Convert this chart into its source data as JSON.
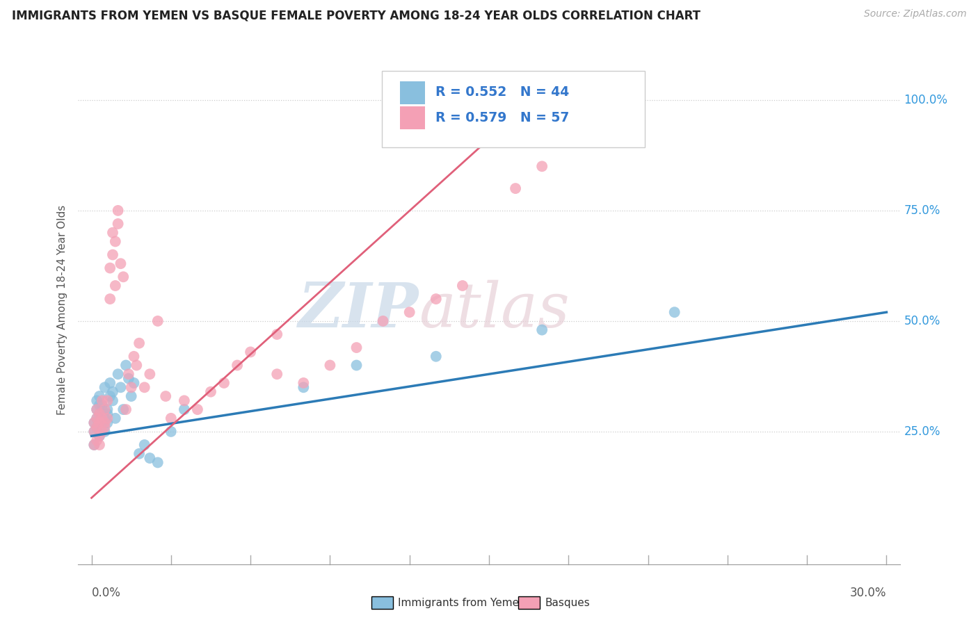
{
  "title": "IMMIGRANTS FROM YEMEN VS BASQUE FEMALE POVERTY AMONG 18-24 YEAR OLDS CORRELATION CHART",
  "source": "Source: ZipAtlas.com",
  "ylabel": "Female Poverty Among 18-24 Year Olds",
  "legend_blue_label": "Immigrants from Yemen",
  "legend_pink_label": "Basques",
  "R_blue": 0.552,
  "N_blue": 44,
  "R_pink": 0.579,
  "N_pink": 57,
  "blue_color": "#89bfde",
  "pink_color": "#f4a0b5",
  "blue_line_color": "#2c7bb6",
  "pink_line_color": "#e0607a",
  "watermark_zip": "ZIP",
  "watermark_atlas": "atlas",
  "xlim_min": 0.0,
  "xlim_max": 0.3,
  "ylim_min": 0.0,
  "ylim_max": 1.05,
  "ytick_vals": [
    0.25,
    0.5,
    0.75,
    1.0
  ],
  "ytick_labels": [
    "25.0%",
    "50.0%",
    "75.0%",
    "100.0%"
  ],
  "xtick_left_label": "0.0%",
  "xtick_right_label": "30.0%",
  "blue_scatter_x": [
    0.001,
    0.001,
    0.002,
    0.001,
    0.002,
    0.002,
    0.003,
    0.002,
    0.003,
    0.003,
    0.004,
    0.003,
    0.004,
    0.004,
    0.005,
    0.004,
    0.005,
    0.005,
    0.006,
    0.006,
    0.007,
    0.006,
    0.007,
    0.008,
    0.009,
    0.008,
    0.01,
    0.011,
    0.012,
    0.013,
    0.015,
    0.014,
    0.016,
    0.018,
    0.02,
    0.022,
    0.025,
    0.03,
    0.035,
    0.08,
    0.1,
    0.13,
    0.17,
    0.22
  ],
  "blue_scatter_y": [
    0.27,
    0.25,
    0.3,
    0.22,
    0.28,
    0.32,
    0.29,
    0.26,
    0.31,
    0.24,
    0.28,
    0.33,
    0.27,
    0.3,
    0.25,
    0.31,
    0.28,
    0.35,
    0.3,
    0.27,
    0.33,
    0.29,
    0.36,
    0.32,
    0.28,
    0.34,
    0.38,
    0.35,
    0.3,
    0.4,
    0.33,
    0.37,
    0.36,
    0.2,
    0.22,
    0.19,
    0.18,
    0.25,
    0.3,
    0.35,
    0.4,
    0.42,
    0.48,
    0.52
  ],
  "pink_scatter_x": [
    0.001,
    0.001,
    0.001,
    0.002,
    0.002,
    0.002,
    0.002,
    0.003,
    0.003,
    0.003,
    0.003,
    0.004,
    0.004,
    0.004,
    0.005,
    0.005,
    0.005,
    0.006,
    0.006,
    0.007,
    0.007,
    0.008,
    0.008,
    0.009,
    0.009,
    0.01,
    0.01,
    0.011,
    0.012,
    0.013,
    0.014,
    0.015,
    0.016,
    0.017,
    0.018,
    0.02,
    0.022,
    0.025,
    0.028,
    0.03,
    0.035,
    0.04,
    0.045,
    0.05,
    0.055,
    0.06,
    0.07,
    0.07,
    0.08,
    0.09,
    0.1,
    0.11,
    0.12,
    0.13,
    0.14,
    0.16,
    0.17
  ],
  "pink_scatter_y": [
    0.27,
    0.25,
    0.22,
    0.28,
    0.26,
    0.3,
    0.23,
    0.27,
    0.24,
    0.29,
    0.22,
    0.28,
    0.25,
    0.32,
    0.27,
    0.3,
    0.26,
    0.32,
    0.28,
    0.55,
    0.62,
    0.65,
    0.7,
    0.58,
    0.68,
    0.72,
    0.75,
    0.63,
    0.6,
    0.3,
    0.38,
    0.35,
    0.42,
    0.4,
    0.45,
    0.35,
    0.38,
    0.5,
    0.33,
    0.28,
    0.32,
    0.3,
    0.34,
    0.36,
    0.4,
    0.43,
    0.47,
    0.38,
    0.36,
    0.4,
    0.44,
    0.5,
    0.52,
    0.55,
    0.58,
    0.8,
    0.85
  ],
  "blue_line_x0": 0.0,
  "blue_line_y0": 0.24,
  "blue_line_x1": 0.3,
  "blue_line_y1": 0.52,
  "pink_line_x0": 0.0,
  "pink_line_y0": 0.1,
  "pink_line_x1": 0.17,
  "pink_line_y1": 1.02
}
